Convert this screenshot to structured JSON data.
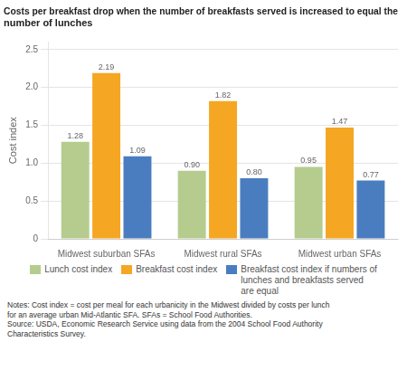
{
  "chart_data": {
    "type": "bar",
    "title": "Costs per breakfast drop when the number of breakfasts served is increased to equal the\nnumber of lunches",
    "ylabel": "Cost index",
    "categories": [
      "Midwest suburban SFAs",
      "Midwest rural SFAs",
      "Midwest urban SFAs"
    ],
    "series": [
      {
        "name": "Lunch cost index",
        "color": "#b5cc8e",
        "values": [
          1.28,
          0.9,
          0.95
        ],
        "value_labels": [
          "1.28",
          "0.90",
          "0.95"
        ]
      },
      {
        "name": "Breakfast cost index",
        "color": "#f5a623",
        "values": [
          2.19,
          1.82,
          1.47
        ],
        "value_labels": [
          "2.19",
          "1.82",
          "1.47"
        ]
      },
      {
        "name": "Breakfast cost index if numbers of\nlunches and breakfasts served\nare equal",
        "color": "#4a7dc0",
        "values": [
          1.09,
          0.8,
          0.77
        ],
        "value_labels": [
          "1.09",
          "0.80",
          "0.77"
        ]
      }
    ],
    "ylim": [
      0,
      2.6
    ],
    "yticks": [
      0,
      0.5,
      {
        "value": 1.0,
        "label": "1.0"
      },
      1.5,
      {
        "value": 2.0,
        "label": "2.0"
      },
      2.5
    ],
    "grid": true,
    "legend": "bottom",
    "data_labels": true,
    "annotations": [
      "Notes: Cost index = cost per meal for each urbanicity in the Midwest divided by costs per lunch\nfor an average urban Mid-Atlantic SFA. SFAs = School Food Authorities.\nSource: USDA, Economic Research Service using data from the 2004 School Food Authority\nCharacteristics Survey."
    ]
  }
}
